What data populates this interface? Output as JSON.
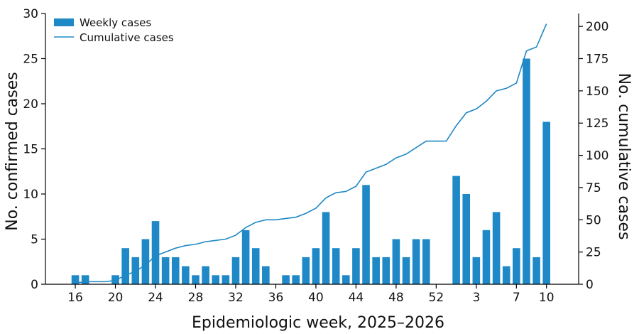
{
  "chart_data": {
    "type": "bar",
    "x": [
      16,
      17,
      18,
      19,
      20,
      21,
      22,
      23,
      24,
      25,
      26,
      27,
      28,
      29,
      30,
      31,
      32,
      33,
      34,
      35,
      36,
      37,
      38,
      39,
      40,
      41,
      42,
      43,
      44,
      45,
      46,
      47,
      48,
      49,
      50,
      51,
      52,
      53,
      1,
      2,
      3,
      4,
      5,
      6,
      7,
      8,
      9,
      10
    ],
    "tick_labels": [
      "16",
      "20",
      "24",
      "28",
      "32",
      "36",
      "40",
      "44",
      "48",
      "52",
      "3",
      "7",
      "10"
    ],
    "series": [
      {
        "name": "Weekly cases",
        "type": "bar",
        "axis": "left",
        "values": [
          1,
          1,
          0,
          0,
          1,
          4,
          3,
          5,
          7,
          3,
          3,
          2,
          1,
          2,
          1,
          1,
          3,
          6,
          4,
          2,
          0,
          1,
          1,
          3,
          4,
          8,
          4,
          1,
          4,
          11,
          3,
          3,
          5,
          3,
          5,
          5,
          0,
          0,
          12,
          10,
          3,
          6,
          8,
          2,
          4,
          25,
          3,
          18
        ]
      },
      {
        "name": "Cumulative cases",
        "type": "line",
        "axis": "right",
        "values": [
          1,
          2,
          2,
          2,
          3,
          7,
          10,
          15,
          22,
          25,
          28,
          30,
          31,
          33,
          34,
          35,
          38,
          44,
          48,
          50,
          50,
          51,
          52,
          55,
          59,
          67,
          71,
          72,
          76,
          87,
          90,
          93,
          98,
          101,
          106,
          111,
          111,
          111,
          123,
          133,
          136,
          142,
          150,
          152,
          156,
          181,
          184,
          202
        ]
      }
    ],
    "xlabel": "Epidemiologic week, 2025–2026",
    "ylabel": "No. confirmed cases",
    "y2label": "No. cumulative cases",
    "ylim": [
      0,
      30
    ],
    "y2lim": [
      0,
      210
    ],
    "yticks": [
      0,
      5,
      10,
      15,
      20,
      25,
      30
    ],
    "y2ticks": [
      0,
      25,
      50,
      75,
      100,
      125,
      150,
      175,
      200
    ],
    "legend": "top-left",
    "grid": false,
    "colors": {
      "bar": "#1f88c6",
      "line": "#1f88c6",
      "axis": "#000000"
    }
  }
}
